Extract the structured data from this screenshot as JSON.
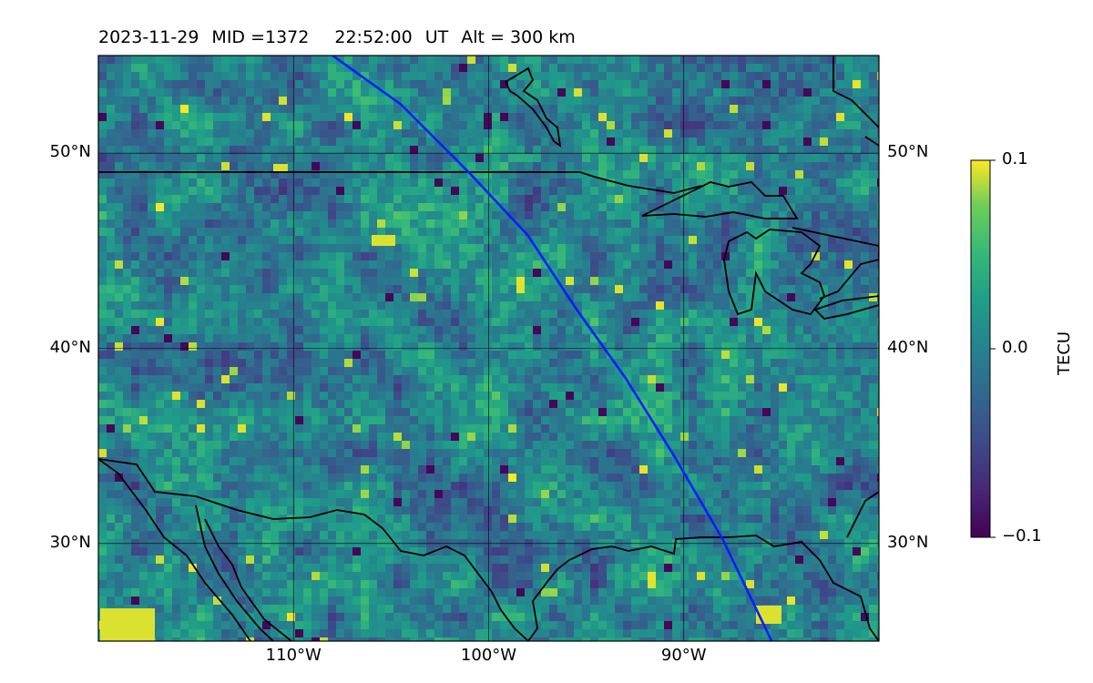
{
  "title": {
    "date": "2023-11-29",
    "mid_label": "MID =1372",
    "time": "22:52:00",
    "time_unit": "UT",
    "altitude": "Alt = 300 km"
  },
  "map": {
    "lon_range": [
      -120,
      -80
    ],
    "lat_range": [
      25,
      55
    ],
    "lat_ticks": [
      {
        "value": 50,
        "label": "50°N"
      },
      {
        "value": 40,
        "label": "40°N"
      },
      {
        "value": 30,
        "label": "30°N"
      }
    ],
    "lon_ticks": [
      {
        "value": -110,
        "label": "110°W"
      },
      {
        "value": -100,
        "label": "100°W"
      },
      {
        "value": -90,
        "label": "90°W"
      }
    ],
    "gridlines": true,
    "field": "TEC perturbation map (viridis), noisy small-scale structure",
    "satellite_track": {
      "color": "#0a1eff",
      "points": [
        [
          -108,
          55
        ],
        [
          -104.5,
          52.5
        ],
        [
          -101,
          49
        ],
        [
          -98,
          45.8
        ],
        [
          -95.5,
          42
        ],
        [
          -93,
          38.5
        ],
        [
          -90.5,
          34.5
        ],
        [
          -88,
          30.2
        ],
        [
          -85.5,
          25
        ]
      ]
    },
    "coastline_color": "#000000"
  },
  "colorbar": {
    "label": "TECU",
    "min": -0.1,
    "max": 0.1,
    "ticks": [
      {
        "value": 0.1,
        "label": "0.1"
      },
      {
        "value": 0.0,
        "label": "0.0"
      },
      {
        "value": -0.1,
        "label": "−0.1"
      }
    ],
    "colormap": "viridis"
  }
}
